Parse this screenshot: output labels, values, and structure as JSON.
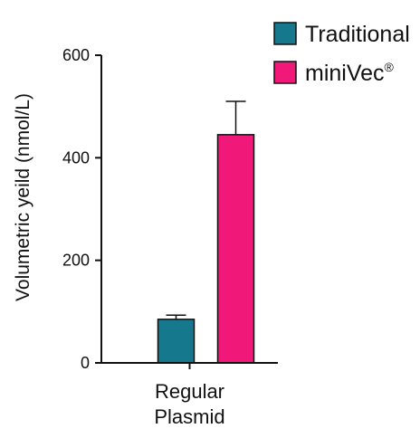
{
  "chart_data": {
    "type": "bar",
    "title": "",
    "xlabel": "",
    "ylabel": "Volumetric yeild (nmol/L)",
    "categories": [
      [
        "Regular",
        "Plasmid"
      ]
    ],
    "series": [
      {
        "name": "Traditional",
        "name_sup": "",
        "color": "#15788c",
        "values": [
          85
        ],
        "error": [
          8
        ]
      },
      {
        "name": "miniVec",
        "name_sup": "®",
        "color": "#f0197a",
        "values": [
          445
        ],
        "error": [
          65
        ]
      }
    ],
    "ylim": [
      0,
      600
    ],
    "yticks": [
      0,
      200,
      400,
      600
    ],
    "grid": false,
    "legend_position": "top-right",
    "error_bars": "upper"
  }
}
